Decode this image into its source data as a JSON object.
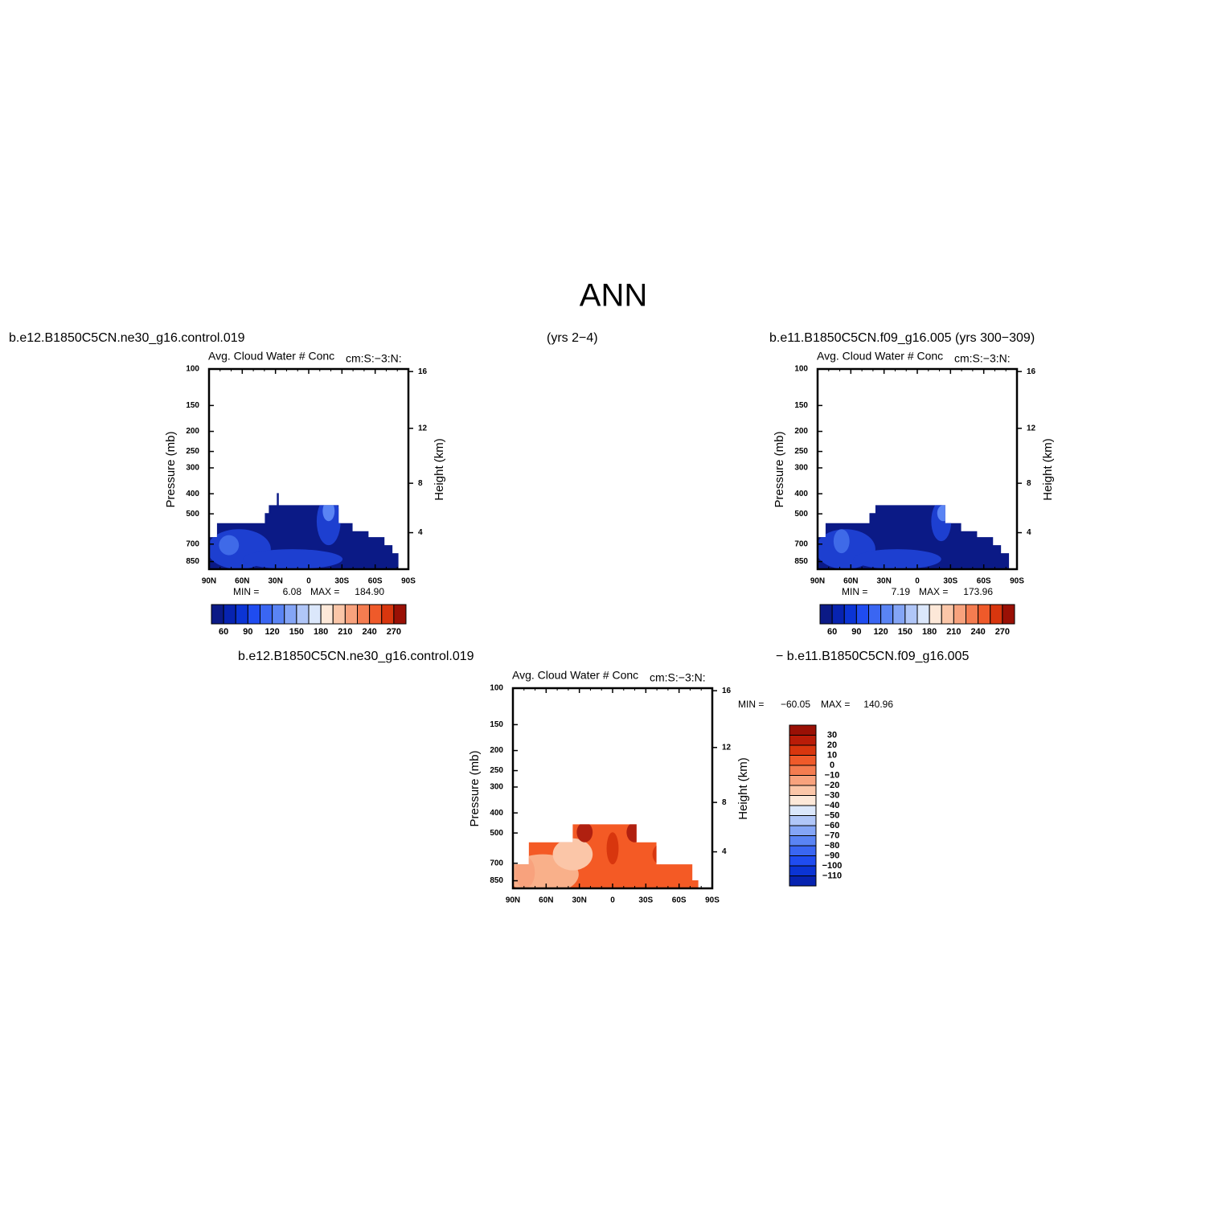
{
  "title": "ANN",
  "panels": [
    {
      "case_label": "b.e12.B1850C5CN.ne30_g16.control.019",
      "years_label": "(yrs 2−4)",
      "subtitle": "Avg. Cloud Water # Conc",
      "units": "cm:S:−3:N:",
      "y_label": "Pressure (mb)",
      "y2_label": "Height (km)",
      "ylim": [
        100,
        925
      ],
      "yticks": [
        100,
        150,
        200,
        250,
        300,
        400,
        500,
        700,
        850
      ],
      "log_y": true,
      "y2ticks": [
        16,
        12,
        8,
        4
      ],
      "xlim": [
        90,
        -90
      ],
      "xticks": [
        {
          "value": 90,
          "label": "90N"
        },
        {
          "value": 60,
          "label": "60N"
        },
        {
          "value": 30,
          "label": "30N"
        },
        0,
        {
          "value": -30,
          "label": "30S"
        },
        {
          "value": -60,
          "label": "60S"
        },
        {
          "value": -90,
          "label": "90S"
        }
      ],
      "min_label": "MIN =",
      "min": 6.08,
      "max_label": "MAX =",
      "max": {
        "value": 184.9,
        "label": "184.90"
      },
      "colorbar": {
        "orientation": "horizontal",
        "lim": [
          45,
          285
        ],
        "ticks": [
          60,
          90,
          120,
          150,
          180,
          210,
          240,
          270
        ],
        "colors": [
          "#0b1a86",
          "#0723b0",
          "#0b34d4",
          "#1f4cf0",
          "#3a66f2",
          "#5a84f4",
          "#84a5f6",
          "#b0c6f8",
          "#dbe7fb",
          "#fde8d8",
          "#fbc6a8",
          "#f8a27d",
          "#f47c50",
          "#ef5a2a",
          "#d8360e",
          "#9a1005"
        ]
      }
    },
    {
      "case_label": "b.e11.B1850C5CN.f09_g16.005 (yrs 300−309)",
      "subtitle": "Avg. Cloud Water # Conc",
      "units": "cm:S:−3:N:",
      "y_label": "Pressure (mb)",
      "y2_label": "Height (km)",
      "ylim": [
        100,
        925
      ],
      "yticks": [
        100,
        150,
        200,
        250,
        300,
        400,
        500,
        700,
        850
      ],
      "log_y": true,
      "y2ticks": [
        16,
        12,
        8,
        4
      ],
      "xlim": [
        90,
        -90
      ],
      "xticks": [
        {
          "value": 90,
          "label": "90N"
        },
        {
          "value": 60,
          "label": "60N"
        },
        {
          "value": 30,
          "label": "30N"
        },
        0,
        {
          "value": -30,
          "label": "30S"
        },
        {
          "value": -60,
          "label": "60S"
        },
        {
          "value": -90,
          "label": "90S"
        }
      ],
      "min_label": "MIN =",
      "min": 7.19,
      "max_label": "MAX =",
      "max": 173.96,
      "colorbar": {
        "orientation": "horizontal",
        "lim": [
          45,
          285
        ],
        "ticks": [
          60,
          90,
          120,
          150,
          180,
          210,
          240,
          270
        ],
        "colors": [
          "#0b1a86",
          "#0723b0",
          "#0b34d4",
          "#1f4cf0",
          "#3a66f2",
          "#5a84f4",
          "#84a5f6",
          "#b0c6f8",
          "#dbe7fb",
          "#fde8d8",
          "#fbc6a8",
          "#f8a27d",
          "#f47c50",
          "#ef5a2a",
          "#d8360e",
          "#9a1005"
        ]
      }
    },
    {
      "case_label": "b.e12.B1850C5CN.ne30_g16.control.019",
      "case_label_2": "− b.e11.B1850C5CN.f09_g16.005",
      "subtitle": "Avg. Cloud Water # Conc",
      "units": "cm:S:−3:N:",
      "y_label": "Pressure (mb)",
      "y2_label": "Height (km)",
      "ylim": [
        100,
        925
      ],
      "yticks": [
        100,
        150,
        200,
        250,
        300,
        400,
        500,
        700,
        850
      ],
      "log_y": true,
      "y2ticks": [
        16,
        12,
        8,
        4
      ],
      "xlim": [
        90,
        -90
      ],
      "xticks": [
        {
          "value": 90,
          "label": "90N"
        },
        {
          "value": 60,
          "label": "60N"
        },
        {
          "value": 30,
          "label": "30N"
        },
        0,
        {
          "value": -30,
          "label": "30S"
        },
        {
          "value": -60,
          "label": "60S"
        },
        {
          "value": -90,
          "label": "90S"
        }
      ],
      "min_label": "MIN =",
      "min": {
        "value": -60.05,
        "label": "−60.05"
      },
      "max_label": "MAX =",
      "max": 140.96,
      "colorbar": {
        "orientation": "vertical",
        "lim": [
          40,
          -120
        ],
        "ticks": [
          30,
          20,
          10,
          0,
          {
            "value": -10,
            "label": "−10"
          },
          {
            "value": -20,
            "label": "−20"
          },
          {
            "value": -30,
            "label": "−30"
          },
          {
            "value": -40,
            "label": "−40"
          },
          {
            "value": -50,
            "label": "−50"
          },
          {
            "value": -60,
            "label": "−60"
          },
          {
            "value": -70,
            "label": "−70"
          },
          {
            "value": -80,
            "label": "−80"
          },
          {
            "value": -90,
            "label": "−90"
          },
          {
            "value": -100,
            "label": "−100"
          },
          {
            "value": -110,
            "label": "−110"
          }
        ],
        "colors": [
          "#9a1005",
          "#b91c08",
          "#d8360e",
          "#ef5a2a",
          "#f47c50",
          "#f8a27d",
          "#fbc6a8",
          "#fde8d8",
          "#dbe7fb",
          "#b0c6f8",
          "#84a5f6",
          "#5a84f4",
          "#3a66f2",
          "#1f4cf0",
          "#0b34d4",
          "#0723b0"
        ]
      }
    }
  ]
}
